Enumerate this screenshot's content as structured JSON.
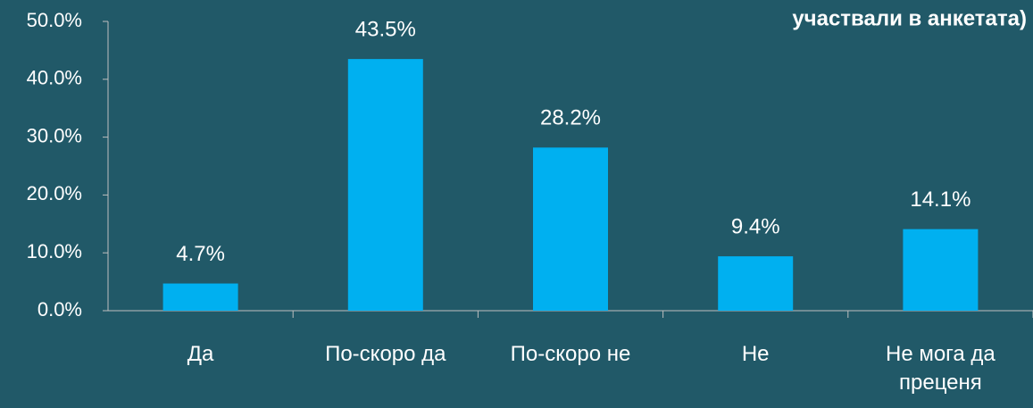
{
  "chart_data": {
    "type": "bar",
    "title": "участвали в анкетата)",
    "categories": [
      "Да",
      "По-скоро да",
      "По-скоро не",
      "Не",
      "Не мога да преценя"
    ],
    "values": [
      4.7,
      43.5,
      28.2,
      9.4,
      14.1
    ],
    "value_labels": [
      "4.7%",
      "43.5%",
      "28.2%",
      "9.4%",
      "14.1%"
    ],
    "color": "#00b0f0",
    "ylim": [
      0,
      50
    ],
    "yticks": [
      {
        "value": 0,
        "label": "0.0%"
      },
      {
        "value": 10,
        "label": "10.0%"
      },
      {
        "value": 20,
        "label": "20.0%"
      },
      {
        "value": 30,
        "label": "30.0%"
      },
      {
        "value": 40,
        "label": "40.0%"
      },
      {
        "value": 50,
        "label": "50.0%"
      }
    ],
    "grid": false
  }
}
